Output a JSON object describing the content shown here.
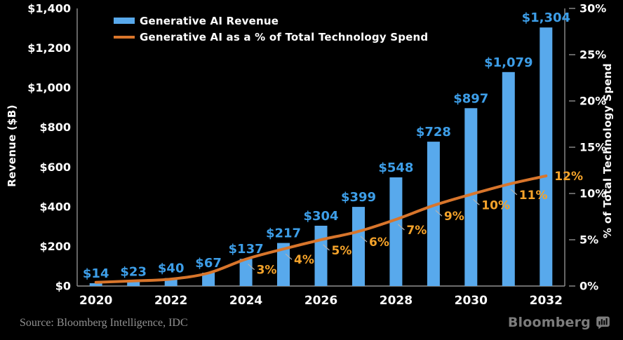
{
  "chart_data": {
    "type": "combo (bar + line)",
    "title": "",
    "categories": [
      2020,
      2021,
      2022,
      2023,
      2024,
      2025,
      2026,
      2027,
      2028,
      2029,
      2030,
      2031,
      2032
    ],
    "series": [
      {
        "name": "Generative AI Revenue",
        "type": "bar",
        "axis": "left",
        "color": "#58A9EC",
        "label_color": "#3D9EE8",
        "values": [
          14,
          23,
          40,
          67,
          137,
          217,
          304,
          399,
          548,
          728,
          897,
          1079,
          1304
        ],
        "value_labels": [
          "$14",
          "$23",
          "$40",
          "$67",
          "$137",
          "$217",
          "$304",
          "$399",
          "$548",
          "$728",
          "$897",
          "$1,079",
          "$1,304"
        ]
      },
      {
        "name": "Generative AI as a % of Total Technology Spend",
        "type": "line",
        "axis": "right",
        "color": "#D8752B",
        "label_color": "#F5A32A",
        "values": [
          0.4,
          0.55,
          0.75,
          1.4,
          2.9,
          4.0,
          5.0,
          5.9,
          7.2,
          8.7,
          9.9,
          11.0,
          11.9
        ],
        "point_labels": [
          "",
          "",
          "",
          "",
          "3%",
          "4%",
          "5%",
          "6%",
          "7%",
          "9%",
          "10%",
          "11%",
          "12%"
        ]
      }
    ],
    "left_axis": {
      "title": "Revenue ($B)",
      "min": 0,
      "max": 1400,
      "tick_values": [
        0,
        200,
        400,
        600,
        800,
        1000,
        1200,
        1400
      ],
      "tick_labels": [
        "$0",
        "$200",
        "$400",
        "$600",
        "$800",
        "$1,000",
        "$1,200",
        "$1,400"
      ]
    },
    "right_axis": {
      "title": "% of Total Technology Spend",
      "min": 0,
      "max": 30,
      "tick_values": [
        0,
        5,
        10,
        15,
        20,
        25,
        30
      ],
      "tick_labels": [
        "0%",
        "5%",
        "10%",
        "15%",
        "20%",
        "25%",
        "30%"
      ]
    },
    "x_axis": {
      "tick_labels": [
        "2020",
        "2022",
        "2024",
        "2026",
        "2028",
        "2030",
        "2032"
      ]
    },
    "grid": false,
    "legend_position": "top-left inside plot"
  },
  "footer": {
    "source": "Source: Bloomberg Intelligence, IDC",
    "brand": "Bloomberg"
  },
  "colors": {
    "background": "#000000",
    "bar": "#58A9EC",
    "bar_label": "#3D9EE8",
    "line": "#D8752B",
    "line_label": "#F5A32A",
    "axis": "#8F8F8F",
    "tick_text": "#FFFFFF",
    "leader": "#B3B3B3",
    "source_text": "#919191",
    "brand": "#7C7C7C"
  }
}
